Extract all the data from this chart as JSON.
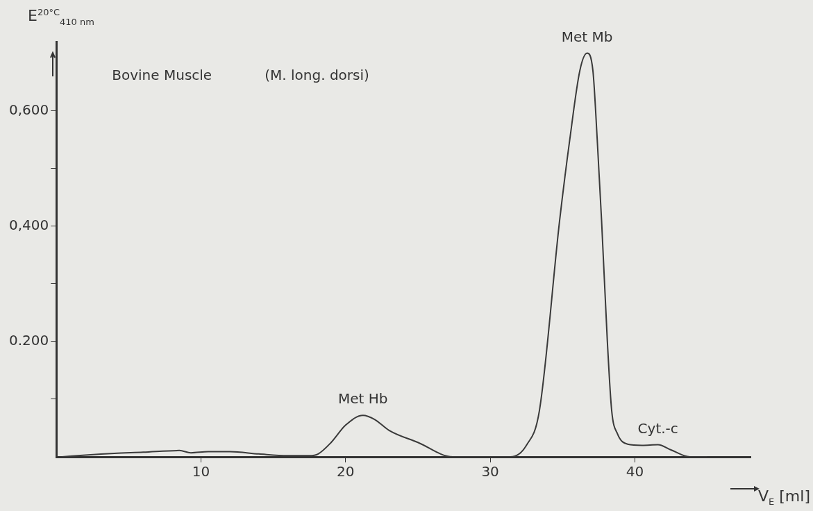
{
  "chart_data": {
    "type": "line",
    "xlabel": "V$_{E}$ [ml]",
    "ylabel": "E$^{20°C}$$_{410 nm}$",
    "xlim": [
      0,
      48
    ],
    "xticks": [
      10,
      20,
      30,
      40
    ],
    "ylim": [
      0,
      0.72
    ],
    "yticks": [
      {
        "value": 0.1,
        "label": null
      },
      {
        "value": 0.2,
        "label": "0.200"
      },
      {
        "value": 0.3,
        "label": null
      },
      {
        "value": 0.4,
        "label": "0,400"
      },
      {
        "value": 0.5,
        "label": null
      },
      {
        "value": 0.6,
        "label": "0,600"
      }
    ],
    "grid": false,
    "legend": false,
    "marker": "none",
    "line_style": "solid",
    "series": [
      {
        "color": "#3a3a3a",
        "x": [
          0.4,
          2,
          4,
          6,
          8.5,
          9.3,
          10.5,
          12,
          14,
          16,
          17.5,
          18.1,
          19,
          20,
          21.2,
          22,
          23,
          25,
          27.4,
          29,
          31.4,
          32.5,
          33.4,
          34.8,
          35.5,
          36.2,
          36.7,
          37.1,
          37.4,
          37.7,
          38.1,
          38.4,
          38.8,
          39.5,
          40.5,
          41.6,
          42.5,
          43.8,
          45
        ],
        "values": [
          0,
          0.003,
          0.006,
          0.008,
          0.011,
          0.007,
          0.009,
          0.009,
          0.005,
          0.002,
          0.002,
          0.005,
          0.025,
          0.055,
          0.072,
          0.065,
          0.046,
          0.025,
          0,
          0,
          0,
          0.02,
          0.08,
          0.41,
          0.55,
          0.67,
          0.7,
          0.67,
          0.55,
          0.41,
          0.2,
          0.08,
          0.04,
          0.022,
          0.02,
          0.021,
          0.012,
          0,
          0
        ]
      }
    ],
    "annotations": [
      "Bovine Muscle",
      "(M. long. dorsi)",
      {
        "text": "Met Hb",
        "x": 21.2,
        "y": 0.072
      },
      {
        "text": "Met Mb",
        "x": 36.7,
        "y": 0.7
      },
      {
        "text": "Cyt.-c",
        "x": 41.6,
        "y": 0.021
      }
    ]
  }
}
